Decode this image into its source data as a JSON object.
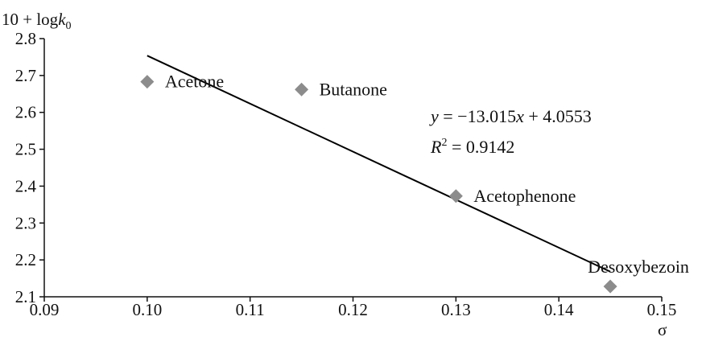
{
  "chart_data": {
    "type": "scatter",
    "title": "",
    "ylabel_prefix": "10 + log",
    "ylabel_var": "k",
    "ylabel_sub": "0",
    "xlabel": "σ",
    "xlim": [
      0.09,
      0.15
    ],
    "ylim": [
      2.1,
      2.8
    ],
    "xticks": [
      "0.09",
      "0.10",
      "0.11",
      "0.12",
      "0.13",
      "0.14",
      "0.15"
    ],
    "yticks": [
      "2.1",
      "2.2",
      "2.3",
      "2.4",
      "2.5",
      "2.6",
      "2.7",
      "2.8"
    ],
    "grid": false,
    "points": [
      {
        "label": "Acetone",
        "x": 0.1,
        "y": 2.683
      },
      {
        "label": "Butanone",
        "x": 0.115,
        "y": 2.662
      },
      {
        "label": "Acetophenone",
        "x": 0.13,
        "y": 2.373
      },
      {
        "label": "Desoxybezoin",
        "x": 0.145,
        "y": 2.128
      }
    ],
    "trendline": {
      "slope": -13.015,
      "intercept": 4.0553,
      "x_range": [
        0.1,
        0.145
      ]
    },
    "equation": {
      "y_var": "y",
      "equals": " = −13.015",
      "x_var": "x",
      "rest": " + 4.0553",
      "r_var": "R",
      "r_sup": "2",
      "r_rest": " = 0.9142"
    }
  }
}
